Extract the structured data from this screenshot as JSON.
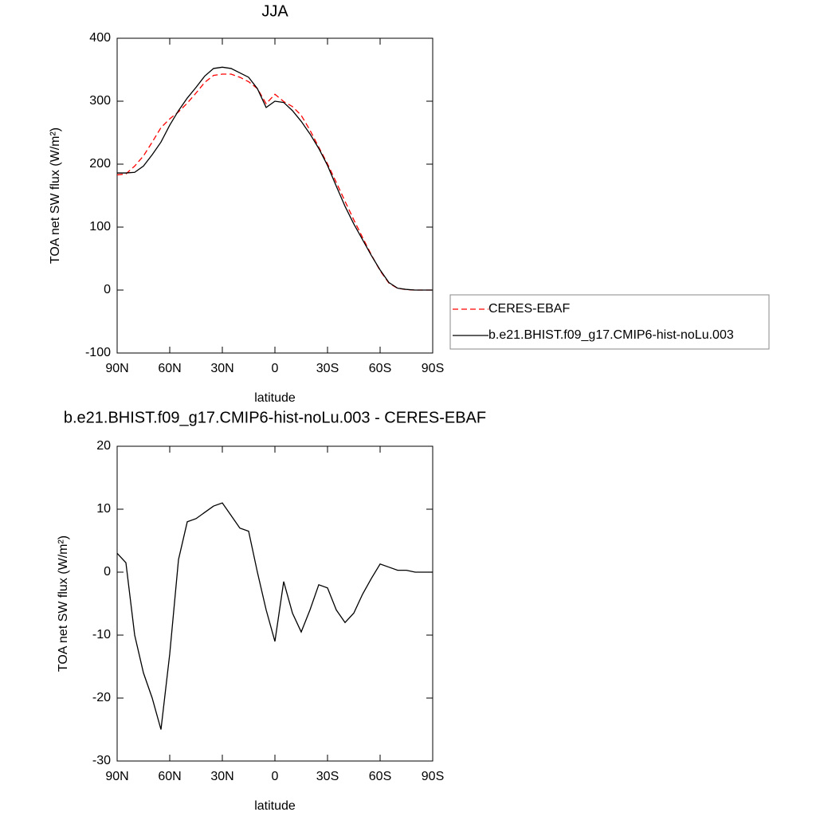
{
  "chart_data": [
    {
      "type": "line",
      "title": "JJA",
      "x_label": "latitude",
      "y_label": "TOA net SW flux (W/m²)",
      "x": [
        90,
        85,
        80,
        75,
        70,
        65,
        60,
        55,
        50,
        45,
        40,
        35,
        30,
        25,
        20,
        15,
        10,
        5,
        0,
        -5,
        -10,
        -15,
        -20,
        -25,
        -30,
        -35,
        -40,
        -45,
        -50,
        -55,
        -60,
        -65,
        -70,
        -75,
        -80,
        -85,
        -90
      ],
      "series": [
        {
          "name": "CERES-EBAF",
          "color": "#ff0000",
          "dashed": true,
          "values": [
            183,
            184.5,
            197,
            213,
            235,
            258,
            272,
            283,
            297,
            313,
            330,
            341,
            343,
            343,
            338,
            331,
            320,
            296,
            311,
            299.5,
            291.5,
            277.5,
            254,
            227,
            200.5,
            171,
            141,
            111.5,
            83.5,
            56,
            30.7,
            11.2,
            2.7,
            0.7,
            0,
            0,
            0
          ]
        },
        {
          "name": "b.e21.BHIST.f09_g17.CMIP6-hist-noLu.003",
          "color": "#000000",
          "dashed": false,
          "values": [
            186,
            186,
            187,
            197,
            215,
            235,
            262,
            285,
            305,
            322,
            340,
            352,
            354,
            352,
            345,
            338,
            320,
            290,
            300,
            298,
            285,
            268,
            248,
            225,
            198,
            165,
            133,
            105,
            80,
            55,
            32,
            12,
            3,
            1,
            0,
            0,
            0
          ]
        }
      ],
      "xlim": [
        90,
        -90
      ],
      "xticks": [
        {
          "value": 90,
          "label": "90N"
        },
        {
          "value": 60,
          "label": "60N"
        },
        {
          "value": 30,
          "label": "30N"
        },
        0,
        {
          "value": -30,
          "label": "30S"
        },
        {
          "value": -60,
          "label": "60S"
        },
        {
          "value": -90,
          "label": "90S"
        }
      ],
      "ylim": [
        -100,
        400
      ],
      "yticks": [
        -100,
        0,
        100,
        200,
        300,
        400
      ],
      "legend": "outside-right"
    },
    {
      "type": "line",
      "title": "b.e21.BHIST.f09_g17.CMIP6-hist-noLu.003 - CERES-EBAF",
      "x_label": "latitude",
      "y_label": "TOA net SW flux (W/m²)",
      "x": [
        90,
        85,
        80,
        75,
        70,
        65,
        60,
        55,
        50,
        45,
        40,
        35,
        30,
        25,
        20,
        15,
        10,
        5,
        0,
        -5,
        -10,
        -15,
        -20,
        -25,
        -30,
        -35,
        -40,
        -45,
        -50,
        -55,
        -60,
        -65,
        -70,
        -75,
        -80,
        -85,
        -90
      ],
      "color": "#000000",
      "values": [
        3,
        1.5,
        -10,
        -16,
        -20,
        -25,
        -13,
        2,
        8,
        8.5,
        9.5,
        10.5,
        11,
        9,
        7,
        6.5,
        0,
        -6,
        -11,
        -1.5,
        -6.5,
        -9.5,
        -6,
        -2,
        -2.5,
        -6,
        -8,
        -6.5,
        -3.5,
        -1,
        1.3,
        0.8,
        0.3,
        0.3,
        0,
        0,
        0
      ],
      "xlim": [
        90,
        -90
      ],
      "xticks": [
        {
          "value": 90,
          "label": "90N"
        },
        {
          "value": 60,
          "label": "60N"
        },
        {
          "value": 30,
          "label": "30N"
        },
        0,
        {
          "value": -30,
          "label": "30S"
        },
        {
          "value": -60,
          "label": "60S"
        },
        {
          "value": -90,
          "label": "90S"
        }
      ],
      "ylim": [
        -30,
        20
      ],
      "yticks": [
        -30,
        -20,
        -10,
        0,
        10,
        20
      ]
    }
  ]
}
